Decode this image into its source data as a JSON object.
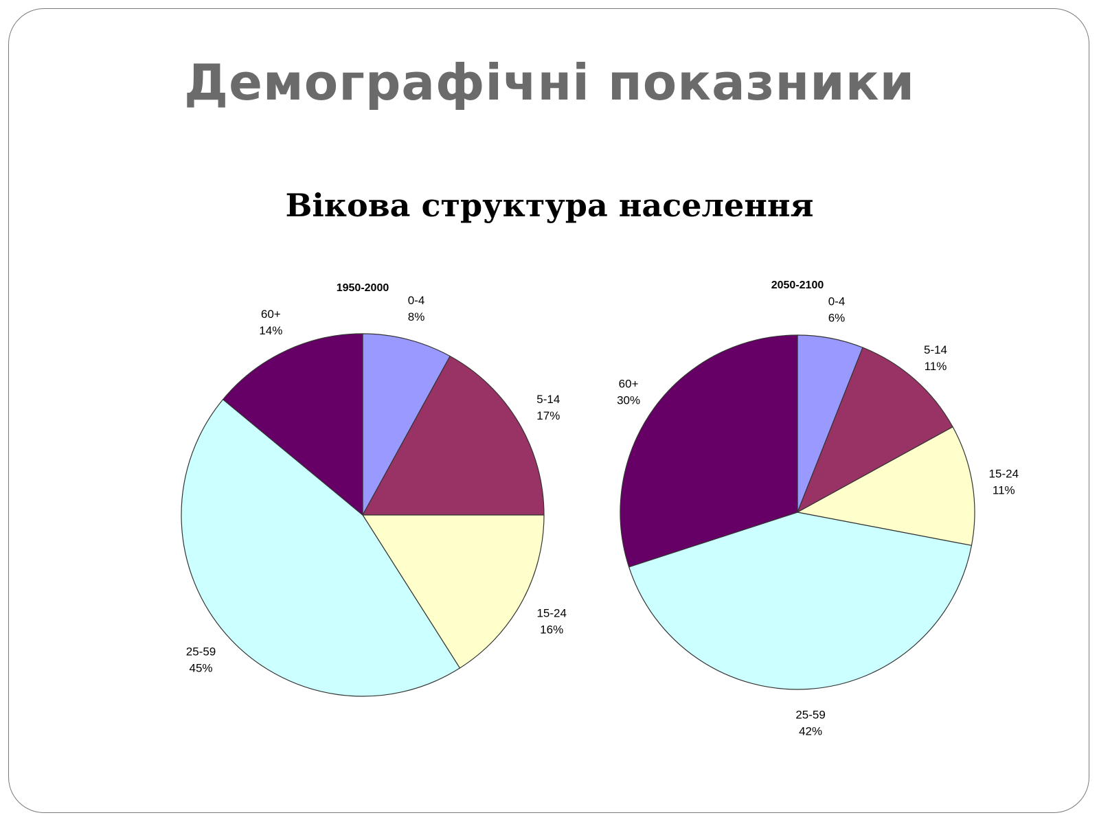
{
  "slide": {
    "title": "Демографічні показники",
    "subtitle": "Вікова структура населення"
  },
  "colors": {
    "0-4": "#9999ff",
    "5-14": "#993366",
    "15-24": "#ffffcc",
    "25-59": "#ccffff",
    "60+": "#660066"
  },
  "chart_data": [
    {
      "type": "pie",
      "title": "1950-2000",
      "categories": [
        "0-4",
        "5-14",
        "15-24",
        "25-59",
        "60+"
      ],
      "values": [
        8,
        17,
        16,
        45,
        14
      ],
      "value_labels": [
        "8%",
        "17%",
        "16%",
        "45%",
        "14%"
      ],
      "start": "12 o'clock",
      "direction": "clockwise",
      "legend": "none"
    },
    {
      "type": "pie",
      "title": "2050-2100",
      "categories": [
        "0-4",
        "5-14",
        "15-24",
        "25-59",
        "60+"
      ],
      "values": [
        6,
        11,
        11,
        42,
        30
      ],
      "value_labels": [
        "6%",
        "11%",
        "11%",
        "42%",
        "30%"
      ],
      "start": "12 o'clock",
      "direction": "clockwise",
      "legend": "none"
    }
  ]
}
